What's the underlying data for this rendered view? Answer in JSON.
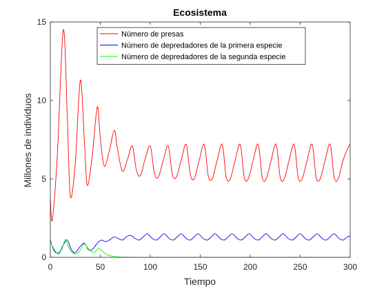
{
  "chart_data": {
    "type": "line",
    "title": "Ecosistema",
    "xlabel": "Tiempo",
    "ylabel": "Millones de individuos",
    "xlim": [
      0,
      300
    ],
    "ylim": [
      0,
      15
    ],
    "xticks": [
      0,
      50,
      100,
      150,
      200,
      250,
      300
    ],
    "yticks": [
      0,
      5,
      10,
      15
    ],
    "grid": false,
    "legend_position": "top-center",
    "series": [
      {
        "name": "Número de presas",
        "color": "#ff0000",
        "x": [
          0,
          2,
          7,
          13,
          17,
          20,
          25,
          30,
          34,
          37,
          42,
          47,
          50,
          54,
          59,
          64,
          67,
          72,
          77,
          82,
          86,
          90,
          95,
          100,
          104,
          108,
          113,
          118,
          122,
          126,
          131,
          136,
          140,
          144,
          149,
          154,
          158,
          162,
          167,
          172,
          176,
          180,
          185,
          190,
          194,
          198,
          203,
          208,
          212,
          216,
          221,
          226,
          230,
          234,
          239,
          244,
          248,
          252,
          257,
          262,
          266,
          270,
          275,
          280,
          284,
          288,
          293,
          298,
          300
        ],
        "y": [
          3.7,
          2.4,
          6.5,
          14.5,
          9.0,
          3.9,
          6.0,
          11.3,
          7.5,
          4.6,
          6.5,
          9.6,
          7.6,
          5.8,
          6.8,
          8.1,
          7.0,
          5.5,
          6.2,
          7.1,
          5.6,
          5.2,
          6.3,
          7.1,
          5.4,
          5.1,
          6.2,
          7.1,
          5.3,
          5.1,
          6.2,
          7.2,
          5.3,
          5.0,
          6.2,
          7.2,
          5.2,
          5.0,
          6.2,
          7.2,
          5.1,
          5.0,
          6.2,
          7.2,
          5.1,
          5.0,
          6.2,
          7.2,
          5.1,
          5.0,
          6.2,
          7.2,
          5.1,
          5.0,
          6.2,
          7.2,
          5.1,
          5.0,
          6.2,
          7.2,
          5.1,
          5.0,
          6.2,
          7.2,
          5.1,
          5.0,
          6.2,
          7.0,
          7.2
        ]
      },
      {
        "name": "Número de depredadores de la primera especie",
        "color": "#0000ff",
        "x": [
          0,
          4,
          9,
          13,
          17,
          21,
          25,
          30,
          34,
          38,
          42,
          47,
          51,
          55,
          59,
          64,
          68,
          72,
          76,
          80,
          85,
          89,
          93,
          97,
          102,
          106,
          110,
          114,
          119,
          123,
          127,
          131,
          136,
          140,
          144,
          148,
          153,
          157,
          161,
          165,
          170,
          174,
          178,
          182,
          187,
          191,
          195,
          199,
          204,
          208,
          212,
          216,
          221,
          225,
          229,
          233,
          238,
          242,
          246,
          250,
          255,
          259,
          263,
          267,
          272,
          276,
          280,
          284,
          289,
          293,
          297,
          300
        ],
        "y": [
          1.1,
          0.4,
          0.3,
          0.8,
          1.1,
          0.5,
          0.3,
          0.7,
          0.9,
          0.5,
          0.5,
          0.9,
          1.1,
          1.0,
          1.1,
          1.3,
          1.2,
          1.1,
          1.3,
          1.4,
          1.2,
          1.1,
          1.3,
          1.5,
          1.2,
          1.1,
          1.3,
          1.5,
          1.2,
          1.1,
          1.3,
          1.5,
          1.2,
          1.1,
          1.3,
          1.5,
          1.2,
          1.1,
          1.3,
          1.5,
          1.2,
          1.1,
          1.3,
          1.5,
          1.2,
          1.1,
          1.3,
          1.5,
          1.2,
          1.1,
          1.3,
          1.5,
          1.2,
          1.1,
          1.3,
          1.5,
          1.2,
          1.1,
          1.3,
          1.5,
          1.2,
          1.1,
          1.3,
          1.5,
          1.2,
          1.1,
          1.3,
          1.5,
          1.2,
          1.1,
          1.3,
          1.35
        ]
      },
      {
        "name": "Número de depredadores de la segunda especie",
        "color": "#00ff00",
        "x": [
          0,
          4,
          8,
          12,
          15,
          18,
          22,
          27,
          31,
          34,
          38,
          43,
          48,
          52,
          56,
          60,
          65,
          70,
          80,
          90,
          100,
          120,
          150,
          200,
          250,
          300
        ],
        "y": [
          1.0,
          0.5,
          0.2,
          0.6,
          1.15,
          0.7,
          0.3,
          0.25,
          0.55,
          0.85,
          0.55,
          0.3,
          0.55,
          0.4,
          0.2,
          0.1,
          0.05,
          0.02,
          0.01,
          0.0,
          0.0,
          0.0,
          0.0,
          0.0,
          0.0,
          0.0
        ]
      }
    ]
  }
}
